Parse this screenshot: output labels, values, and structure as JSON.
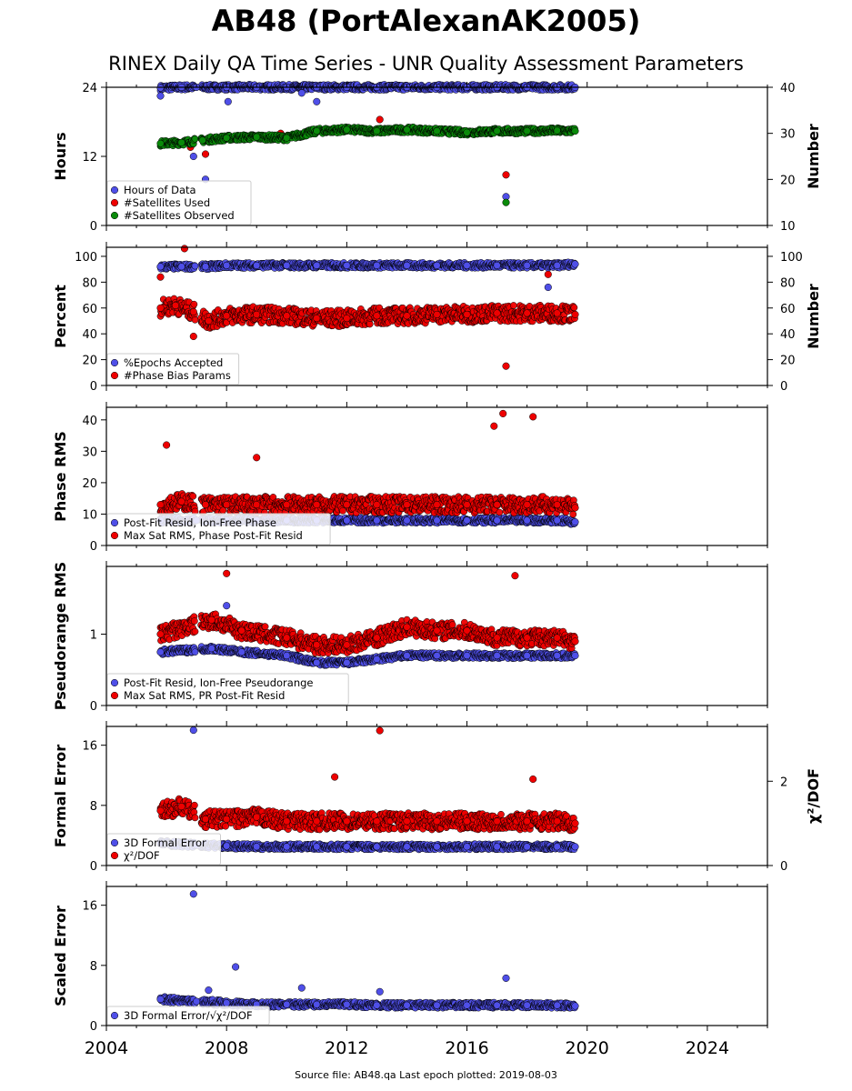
{
  "title": "AB48 (PortAlexanAK2005)",
  "subtitle": "RINEX Daily QA Time Series - UNR Quality Assessment Parameters",
  "footer": "Source file: AB48.qa Last epoch plotted: 2019-08-03",
  "colors": {
    "blue": "#4f4fe8",
    "red": "#ee0000",
    "green": "#0a8a0a"
  },
  "chart_data": [
    {
      "type": "scatter",
      "ylabel": "Hours",
      "y2label": "Number",
      "xlim": [
        2004,
        2026
      ],
      "ylim": [
        0,
        24
      ],
      "y2lim": [
        10,
        40
      ],
      "yticks": [
        0,
        12,
        24
      ],
      "y2ticks": [
        10,
        20,
        30,
        40
      ],
      "legend": "bottom-left",
      "series": [
        {
          "name": "Hours of Data",
          "color": "blue",
          "axis": "left",
          "values": [
            [
              2005.8,
              23.9
            ],
            [
              2006.5,
              24
            ],
            [
              2007,
              24
            ],
            [
              2008,
              24
            ],
            [
              2009,
              24
            ],
            [
              2010,
              24
            ],
            [
              2011,
              24
            ],
            [
              2012,
              24
            ],
            [
              2013,
              24
            ],
            [
              2014,
              24
            ],
            [
              2015,
              24
            ],
            [
              2016,
              24
            ],
            [
              2017,
              24
            ],
            [
              2018,
              24
            ],
            [
              2019,
              24
            ],
            [
              2019.6,
              24
            ],
            [
              2005.8,
              22.5
            ],
            [
              2008.05,
              21.5
            ],
            [
              2010.5,
              23
            ],
            [
              2011,
              21.5
            ],
            [
              2017.3,
              5
            ],
            [
              2007.3,
              8
            ],
            [
              2006.9,
              12
            ]
          ]
        },
        {
          "name": "#Satellites Used",
          "color": "red",
          "axis": "right",
          "values": [
            [
              2007.3,
              25.5
            ],
            [
              2006.8,
              27
            ],
            [
              2009.8,
              30
            ],
            [
              2013.1,
              33
            ],
            [
              2017.3,
              21
            ]
          ]
        },
        {
          "name": "#Satellites Observed",
          "color": "green",
          "axis": "right",
          "values": [
            [
              2005.8,
              27.8
            ],
            [
              2006.5,
              28
            ],
            [
              2007.2,
              28.5
            ],
            [
              2008,
              29
            ],
            [
              2009,
              29.2
            ],
            [
              2010,
              29
            ],
            [
              2011,
              30.5
            ],
            [
              2012,
              30.8
            ],
            [
              2013,
              30.5
            ],
            [
              2014,
              30.8
            ],
            [
              2015,
              30.5
            ],
            [
              2016,
              30.2
            ],
            [
              2017,
              30.5
            ],
            [
              2018,
              30.5
            ],
            [
              2019,
              30.6
            ],
            [
              2019.6,
              30.5
            ],
            [
              2017.3,
              15
            ]
          ]
        }
      ]
    },
    {
      "type": "scatter",
      "ylabel": "Percent",
      "y2label": "Number",
      "xlim": [
        2004,
        2026
      ],
      "ylim": [
        0,
        107
      ],
      "y2lim": [
        0,
        107
      ],
      "yticks": [
        0,
        20,
        40,
        60,
        80,
        100
      ],
      "y2ticks": [
        0,
        20,
        40,
        60,
        80,
        100
      ],
      "legend": "bottom-left",
      "series": [
        {
          "name": "%Epochs Accepted",
          "color": "blue",
          "axis": "left",
          "values": [
            [
              2005.8,
              92
            ],
            [
              2006.5,
              92
            ],
            [
              2007.3,
              92
            ],
            [
              2008,
              93
            ],
            [
              2009,
              93
            ],
            [
              2010,
              93
            ],
            [
              2011,
              93
            ],
            [
              2012,
              93
            ],
            [
              2013,
              93
            ],
            [
              2014,
              93
            ],
            [
              2015,
              93
            ],
            [
              2016,
              93
            ],
            [
              2017,
              93
            ],
            [
              2018,
              93
            ],
            [
              2019,
              93
            ],
            [
              2019.6,
              94
            ],
            [
              2018.7,
              76
            ]
          ]
        },
        {
          "name": "#Phase Bias Params",
          "color": "red",
          "axis": "right",
          "values": [
            [
              2005.8,
              60
            ],
            [
              2006.3,
              62
            ],
            [
              2006.9,
              57
            ],
            [
              2007.4,
              50
            ],
            [
              2008,
              54
            ],
            [
              2009,
              55
            ],
            [
              2010,
              54
            ],
            [
              2011,
              52
            ],
            [
              2012,
              52
            ],
            [
              2013,
              54
            ],
            [
              2014,
              54
            ],
            [
              2015,
              55
            ],
            [
              2016,
              55
            ],
            [
              2017,
              56
            ],
            [
              2018,
              56
            ],
            [
              2019,
              56
            ],
            [
              2019.6,
              55
            ],
            [
              2006.6,
              106
            ],
            [
              2006.9,
              38
            ],
            [
              2017.3,
              15
            ],
            [
              2005.8,
              84
            ],
            [
              2018.7,
              86
            ]
          ]
        }
      ]
    },
    {
      "type": "scatter",
      "ylabel": "Phase RMS",
      "xlim": [
        2004,
        2026
      ],
      "ylim": [
        0,
        44
      ],
      "yticks": [
        0,
        10,
        20,
        30,
        40
      ],
      "legend": "bottom-left",
      "series": [
        {
          "name": "Post-Fit Resid, Ion-Free Phase",
          "color": "blue",
          "values": [
            [
              2005.8,
              8
            ],
            [
              2007,
              8
            ],
            [
              2008,
              8
            ],
            [
              2009,
              8
            ],
            [
              2010,
              8
            ],
            [
              2011,
              8
            ],
            [
              2012,
              8
            ],
            [
              2013,
              8
            ],
            [
              2014,
              8
            ],
            [
              2015,
              8
            ],
            [
              2016,
              8
            ],
            [
              2017,
              8
            ],
            [
              2018,
              8
            ],
            [
              2019,
              8
            ],
            [
              2019.6,
              7.5
            ]
          ]
        },
        {
          "name": "Max Sat RMS, Phase Post-Fit Resid",
          "color": "red",
          "values": [
            [
              2005.8,
              13
            ],
            [
              2006.5,
              14
            ],
            [
              2007.3,
              13
            ],
            [
              2008,
              13
            ],
            [
              2009,
              13
            ],
            [
              2010,
              13
            ],
            [
              2011,
              13
            ],
            [
              2012,
              13
            ],
            [
              2013,
              13
            ],
            [
              2014,
              13
            ],
            [
              2015,
              13
            ],
            [
              2016,
              13
            ],
            [
              2017,
              13
            ],
            [
              2018,
              13
            ],
            [
              2019,
              13
            ],
            [
              2019.6,
              12
            ],
            [
              2017.2,
              42
            ],
            [
              2018.2,
              41
            ],
            [
              2016.9,
              38
            ],
            [
              2006,
              32
            ],
            [
              2009,
              28
            ]
          ]
        }
      ]
    },
    {
      "type": "scatter",
      "ylabel": "Pseudorange RMS",
      "xlim": [
        2004,
        2026
      ],
      "ylim": [
        0,
        1.95
      ],
      "yticks": [
        0,
        1
      ],
      "legend": "bottom-left",
      "series": [
        {
          "name": "Post-Fit Resid, Ion-Free Pseudorange",
          "color": "blue",
          "values": [
            [
              2005.8,
              0.75
            ],
            [
              2007.5,
              0.8
            ],
            [
              2008.5,
              0.75
            ],
            [
              2010,
              0.7
            ],
            [
              2011,
              0.6
            ],
            [
              2012,
              0.6
            ],
            [
              2013,
              0.65
            ],
            [
              2014,
              0.7
            ],
            [
              2015,
              0.7
            ],
            [
              2016,
              0.7
            ],
            [
              2017,
              0.7
            ],
            [
              2018,
              0.7
            ],
            [
              2019,
              0.7
            ],
            [
              2019.6,
              0.7
            ],
            [
              2008,
              1.4
            ]
          ]
        },
        {
          "name": "Max Sat RMS, PR Post-Fit Resid",
          "color": "red",
          "values": [
            [
              2005.8,
              1.0
            ],
            [
              2007.5,
              1.2
            ],
            [
              2008.5,
              1.05
            ],
            [
              2010,
              0.95
            ],
            [
              2011,
              0.85
            ],
            [
              2012,
              0.85
            ],
            [
              2013,
              0.95
            ],
            [
              2014,
              1.1
            ],
            [
              2015,
              1.05
            ],
            [
              2016,
              1.05
            ],
            [
              2017,
              0.95
            ],
            [
              2018,
              0.95
            ],
            [
              2019,
              0.95
            ],
            [
              2019.6,
              0.9
            ],
            [
              2008,
              1.85
            ],
            [
              2017.6,
              1.82
            ]
          ]
        }
      ]
    },
    {
      "type": "scatter",
      "ylabel": "Formal Error",
      "y2label": "χ²/DOF",
      "xlim": [
        2004,
        2026
      ],
      "ylim": [
        0,
        18.5
      ],
      "y2lim": [
        0,
        3.3
      ],
      "yticks": [
        0,
        8,
        16
      ],
      "y2ticks": [
        0,
        2
      ],
      "legend": "bottom-left",
      "series": [
        {
          "name": "3D Formal Error",
          "color": "blue",
          "axis": "left",
          "values": [
            [
              2005.8,
              3
            ],
            [
              2007,
              2.7
            ],
            [
              2008,
              2.6
            ],
            [
              2009,
              2.5
            ],
            [
              2010,
              2.5
            ],
            [
              2011,
              2.5
            ],
            [
              2012,
              2.5
            ],
            [
              2013,
              2.5
            ],
            [
              2014,
              2.5
            ],
            [
              2015,
              2.5
            ],
            [
              2016,
              2.5
            ],
            [
              2017,
              2.5
            ],
            [
              2018,
              2.5
            ],
            [
              2019,
              2.5
            ],
            [
              2019.6,
              2.5
            ],
            [
              2006.9,
              18
            ]
          ]
        },
        {
          "name": "χ²/DOF",
          "color": "red",
          "axis": "right",
          "values": [
            [
              2005.8,
              1.3
            ],
            [
              2006.5,
              1.4
            ],
            [
              2007.3,
              1.1
            ],
            [
              2008,
              1.1
            ],
            [
              2009,
              1.15
            ],
            [
              2010,
              1.05
            ],
            [
              2011,
              1.05
            ],
            [
              2012,
              1.05
            ],
            [
              2013,
              1.05
            ],
            [
              2014,
              1.05
            ],
            [
              2015,
              1.05
            ],
            [
              2016,
              1.05
            ],
            [
              2017,
              1.05
            ],
            [
              2018,
              1.05
            ],
            [
              2019,
              1.05
            ],
            [
              2019.6,
              1.0
            ],
            [
              2013.1,
              3.2
            ],
            [
              2011.6,
              2.1
            ],
            [
              2018.2,
              2.05
            ]
          ]
        }
      ]
    },
    {
      "type": "scatter",
      "ylabel": "Scaled Error",
      "xlim": [
        2004,
        2026
      ],
      "ylim": [
        0,
        18.5
      ],
      "yticks": [
        0,
        8,
        16
      ],
      "xticks": [
        2004,
        2008,
        2012,
        2016,
        2020,
        2024
      ],
      "legend": "bottom-left",
      "series": [
        {
          "name": "3D Formal Error/√χ²/DOF",
          "color": "blue",
          "values": [
            [
              2005.8,
              3.5
            ],
            [
              2007,
              3.2
            ],
            [
              2008,
              3
            ],
            [
              2009,
              2.8
            ],
            [
              2010,
              2.8
            ],
            [
              2011,
              2.8
            ],
            [
              2012,
              2.8
            ],
            [
              2013,
              2.7
            ],
            [
              2014,
              2.7
            ],
            [
              2015,
              2.7
            ],
            [
              2016,
              2.7
            ],
            [
              2017,
              2.7
            ],
            [
              2018,
              2.7
            ],
            [
              2019,
              2.7
            ],
            [
              2019.6,
              2.6
            ],
            [
              2006.9,
              17.5
            ],
            [
              2008.3,
              7.8
            ],
            [
              2017.3,
              6.3
            ],
            [
              2010.5,
              5
            ],
            [
              2013.1,
              4.5
            ],
            [
              2007.4,
              4.7
            ]
          ]
        }
      ]
    }
  ]
}
